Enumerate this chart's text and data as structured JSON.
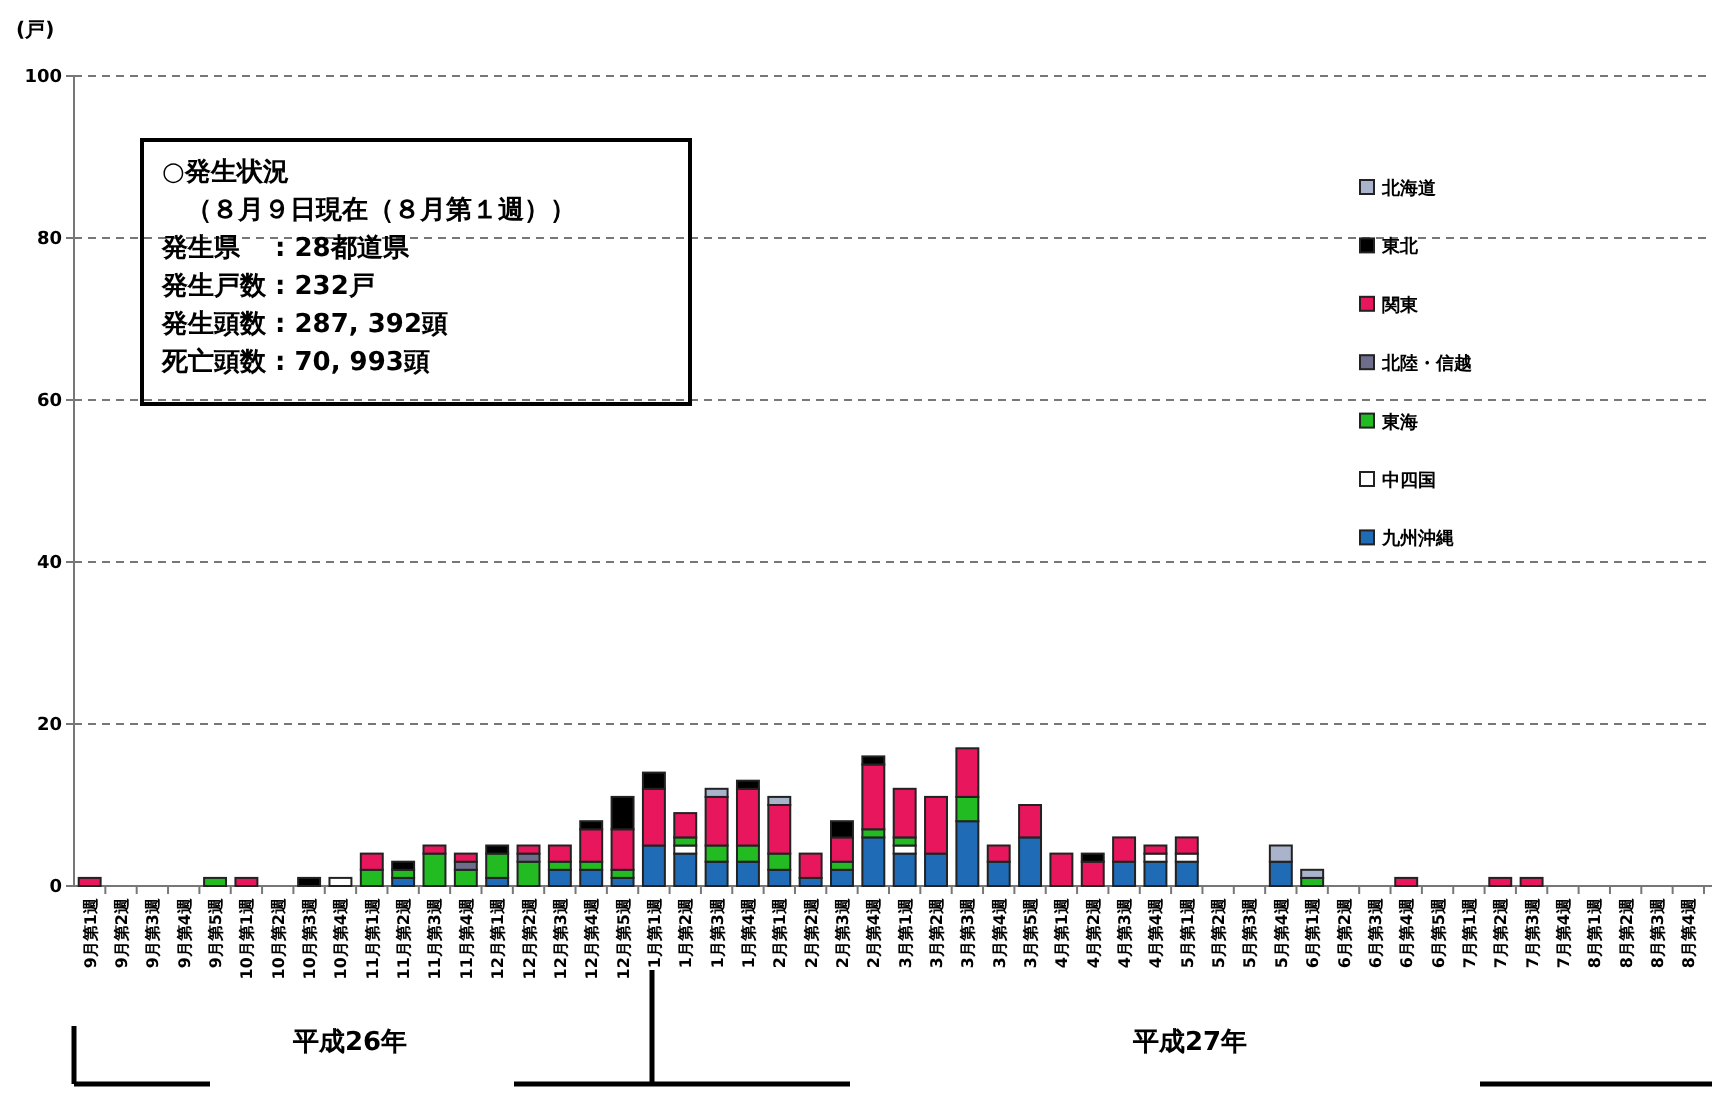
{
  "chart_data": {
    "type": "bar",
    "stacked": true,
    "ylabel": "(戸)",
    "categories": [
      "9月第1週",
      "9月第2週",
      "9月第3週",
      "9月第4週",
      "9月第5週",
      "10月第1週",
      "10月第2週",
      "10月第3週",
      "10月第4週",
      "11月第1週",
      "11月第2週",
      "11月第3週",
      "11月第4週",
      "12月第1週",
      "12月第2週",
      "12月第3週",
      "12月第4週",
      "12月第5週",
      "1月第1週",
      "1月第2週",
      "1月第3週",
      "1月第4週",
      "2月第1週",
      "2月第2週",
      "2月第3週",
      "2月第4週",
      "3月第1週",
      "3月第2週",
      "3月第3週",
      "3月第4週",
      "3月第5週",
      "4月第1週",
      "4月第2週",
      "4月第3週",
      "4月第4週",
      "5月第1週",
      "5月第2週",
      "5月第3週",
      "5月第4週",
      "6月第1週",
      "6月第2週",
      "6月第3週",
      "6月第4週",
      "6月第5週",
      "7月第1週",
      "7月第2週",
      "7月第3週",
      "7月第4週",
      "8月第1週",
      "8月第2週",
      "8月第3週",
      "8月第4週"
    ],
    "series": [
      {
        "name": "九州沖縄",
        "color": "#1f6bb5",
        "values": [
          0,
          0,
          0,
          0,
          0,
          0,
          0,
          0,
          0,
          0,
          1,
          0,
          0,
          1,
          0,
          2,
          2,
          1,
          5,
          4,
          3,
          3,
          2,
          1,
          2,
          6,
          4,
          4,
          8,
          3,
          6,
          0,
          0,
          3,
          3,
          3,
          0,
          0,
          3,
          0,
          0,
          0,
          0,
          0,
          0,
          0,
          0,
          0,
          0,
          0,
          0,
          0
        ]
      },
      {
        "name": "中四国",
        "color": "#ffffff",
        "values": [
          0,
          0,
          0,
          0,
          0,
          0,
          0,
          0,
          1,
          0,
          0,
          0,
          0,
          0,
          0,
          0,
          0,
          0,
          0,
          1,
          0,
          0,
          0,
          0,
          0,
          0,
          1,
          0,
          0,
          0,
          0,
          0,
          0,
          0,
          1,
          1,
          0,
          0,
          0,
          0,
          0,
          0,
          0,
          0,
          0,
          0,
          0,
          0,
          0,
          0,
          0,
          0
        ]
      },
      {
        "name": "東海",
        "color": "#22bb22",
        "values": [
          0,
          0,
          0,
          0,
          1,
          0,
          0,
          0,
          0,
          2,
          1,
          4,
          2,
          3,
          3,
          1,
          1,
          1,
          0,
          1,
          2,
          2,
          2,
          0,
          1,
          1,
          1,
          0,
          3,
          0,
          0,
          0,
          0,
          0,
          0,
          0,
          0,
          0,
          0,
          1,
          0,
          0,
          0,
          0,
          0,
          0,
          0,
          0,
          0,
          0,
          0,
          0
        ]
      },
      {
        "name": "北陸・信越",
        "color": "#6e6e8c",
        "values": [
          0,
          0,
          0,
          0,
          0,
          0,
          0,
          0,
          0,
          0,
          0,
          0,
          1,
          0,
          1,
          0,
          0,
          0,
          0,
          0,
          0,
          0,
          0,
          0,
          0,
          0,
          0,
          0,
          0,
          0,
          0,
          0,
          0,
          0,
          0,
          0,
          0,
          0,
          0,
          0,
          0,
          0,
          0,
          0,
          0,
          0,
          0,
          0,
          0,
          0,
          0,
          0
        ]
      },
      {
        "name": "関東",
        "color": "#e8175d",
        "values": [
          1,
          0,
          0,
          0,
          0,
          1,
          0,
          0,
          0,
          2,
          0,
          1,
          1,
          0,
          1,
          2,
          4,
          5,
          7,
          3,
          6,
          7,
          6,
          3,
          3,
          8,
          6,
          7,
          6,
          2,
          4,
          4,
          3,
          3,
          1,
          2,
          0,
          0,
          0,
          0,
          0,
          0,
          1,
          0,
          0,
          1,
          1,
          0,
          0,
          0,
          0,
          0
        ]
      },
      {
        "name": "東北",
        "color": "#000000",
        "values": [
          0,
          0,
          0,
          0,
          0,
          0,
          0,
          1,
          0,
          0,
          1,
          0,
          0,
          1,
          0,
          0,
          1,
          4,
          2,
          0,
          0,
          1,
          0,
          0,
          2,
          1,
          0,
          0,
          0,
          0,
          0,
          0,
          1,
          0,
          0,
          0,
          0,
          0,
          0,
          0,
          0,
          0,
          0,
          0,
          0,
          0,
          0,
          0,
          0,
          0,
          0,
          0
        ]
      },
      {
        "name": "北海道",
        "color": "#a9b4cc",
        "values": [
          0,
          0,
          0,
          0,
          0,
          0,
          0,
          0,
          0,
          0,
          0,
          0,
          0,
          0,
          0,
          0,
          0,
          0,
          0,
          0,
          1,
          0,
          1,
          0,
          0,
          0,
          0,
          0,
          0,
          0,
          0,
          0,
          0,
          0,
          0,
          0,
          0,
          0,
          2,
          1,
          0,
          0,
          0,
          0,
          0,
          0,
          0,
          0,
          0,
          0,
          0,
          0
        ]
      }
    ],
    "ylim": [
      0,
      100
    ],
    "yticks": [
      0,
      20,
      40,
      60,
      80,
      100
    ],
    "grid": "y",
    "legend": "top right",
    "annotations": [
      "○発生状況",
      "（８月９日現在（８月第１週））",
      "発生県　 : 28都道県",
      "発生戸数 : 232戸",
      "発生頭数 : 287, 392頭",
      "死亡頭数 : 70, 993頭",
      "平成26年",
      "平成27年"
    ]
  }
}
